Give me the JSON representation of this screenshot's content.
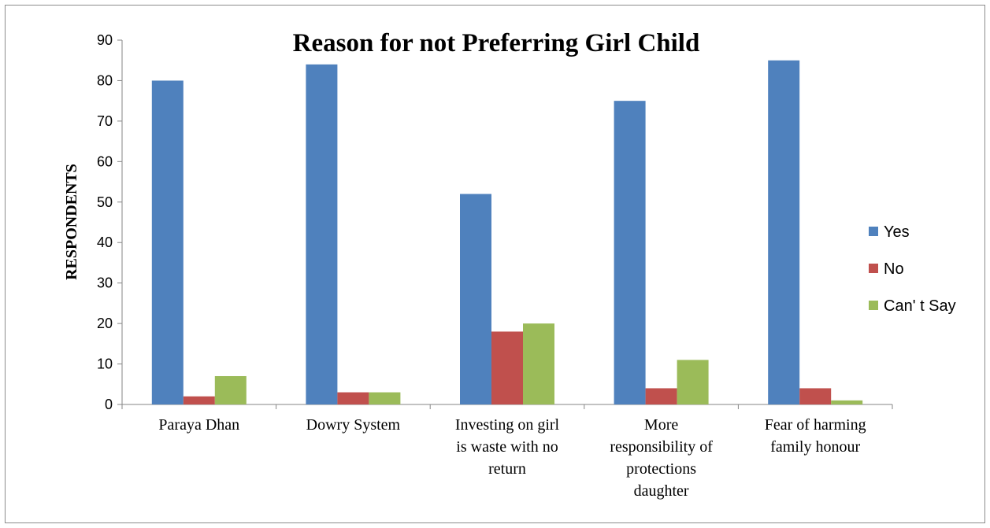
{
  "chart_data": {
    "type": "bar",
    "title": "Reason for not Preferring Girl Child",
    "xlabel": "",
    "ylabel": "RESPONDENTS",
    "ylim": [
      0,
      90
    ],
    "yticks": [
      0,
      10,
      20,
      30,
      40,
      50,
      60,
      70,
      80,
      90
    ],
    "categories": [
      [
        "Paraya Dhan"
      ],
      [
        "Dowry System"
      ],
      [
        "Investing on girl",
        "is waste with no",
        "return"
      ],
      [
        "More",
        "responsibility of",
        "protections",
        "daughter"
      ],
      [
        "Fear of harming",
        "family honour"
      ]
    ],
    "series": [
      {
        "name": "Yes",
        "color": "#4f81bd",
        "values": [
          80,
          84,
          52,
          75,
          85
        ]
      },
      {
        "name": "No",
        "color": "#c0504d",
        "values": [
          2,
          3,
          18,
          4,
          4
        ]
      },
      {
        "name": "Can' t Say",
        "color": "#9bbb59",
        "values": [
          7,
          3,
          20,
          11,
          1
        ]
      }
    ],
    "legend_position": "right",
    "grid": false
  }
}
